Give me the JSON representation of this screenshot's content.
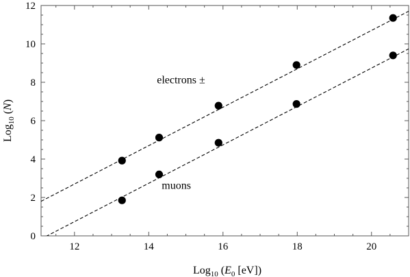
{
  "chart_data": {
    "type": "scatter",
    "title": "",
    "xlabel": {
      "prefix": "Log",
      "sub": "10",
      "open": " (",
      "var": "E",
      "var_sub": "0",
      "rest": " [eV])"
    },
    "ylabel": {
      "prefix": "Log",
      "sub": "10",
      "open": " (",
      "var": "N",
      "close": ")"
    },
    "xlim": [
      11.1,
      21.0
    ],
    "ylim": [
      0,
      12
    ],
    "xticks": [
      12,
      14,
      16,
      18,
      20
    ],
    "yticks": [
      0,
      2,
      4,
      6,
      8,
      10,
      12
    ],
    "grid": false,
    "series": [
      {
        "label_text": "electrons ±",
        "x": [
          13.28,
          14.28,
          15.88,
          17.98,
          20.58
        ],
        "y": [
          3.92,
          5.12,
          6.78,
          8.9,
          11.35
        ],
        "fit": {
          "slope": 1.0,
          "intercept": -9.3
        }
      },
      {
        "label_text": "muons",
        "x": [
          13.28,
          14.28,
          15.88,
          17.98,
          20.58
        ],
        "y": [
          1.85,
          3.2,
          4.85,
          6.87,
          9.4
        ],
        "fit": {
          "slope": 1.0,
          "intercept": -11.26
        }
      }
    ],
    "annotations": [
      {
        "text": "electrons ±",
        "x": 14.22,
        "y": 7.95
      },
      {
        "text": "muons",
        "x": 14.35,
        "y": 2.45
      }
    ],
    "colors": {
      "line": "#000000",
      "marker": "#000000",
      "frame": "#555555"
    }
  }
}
